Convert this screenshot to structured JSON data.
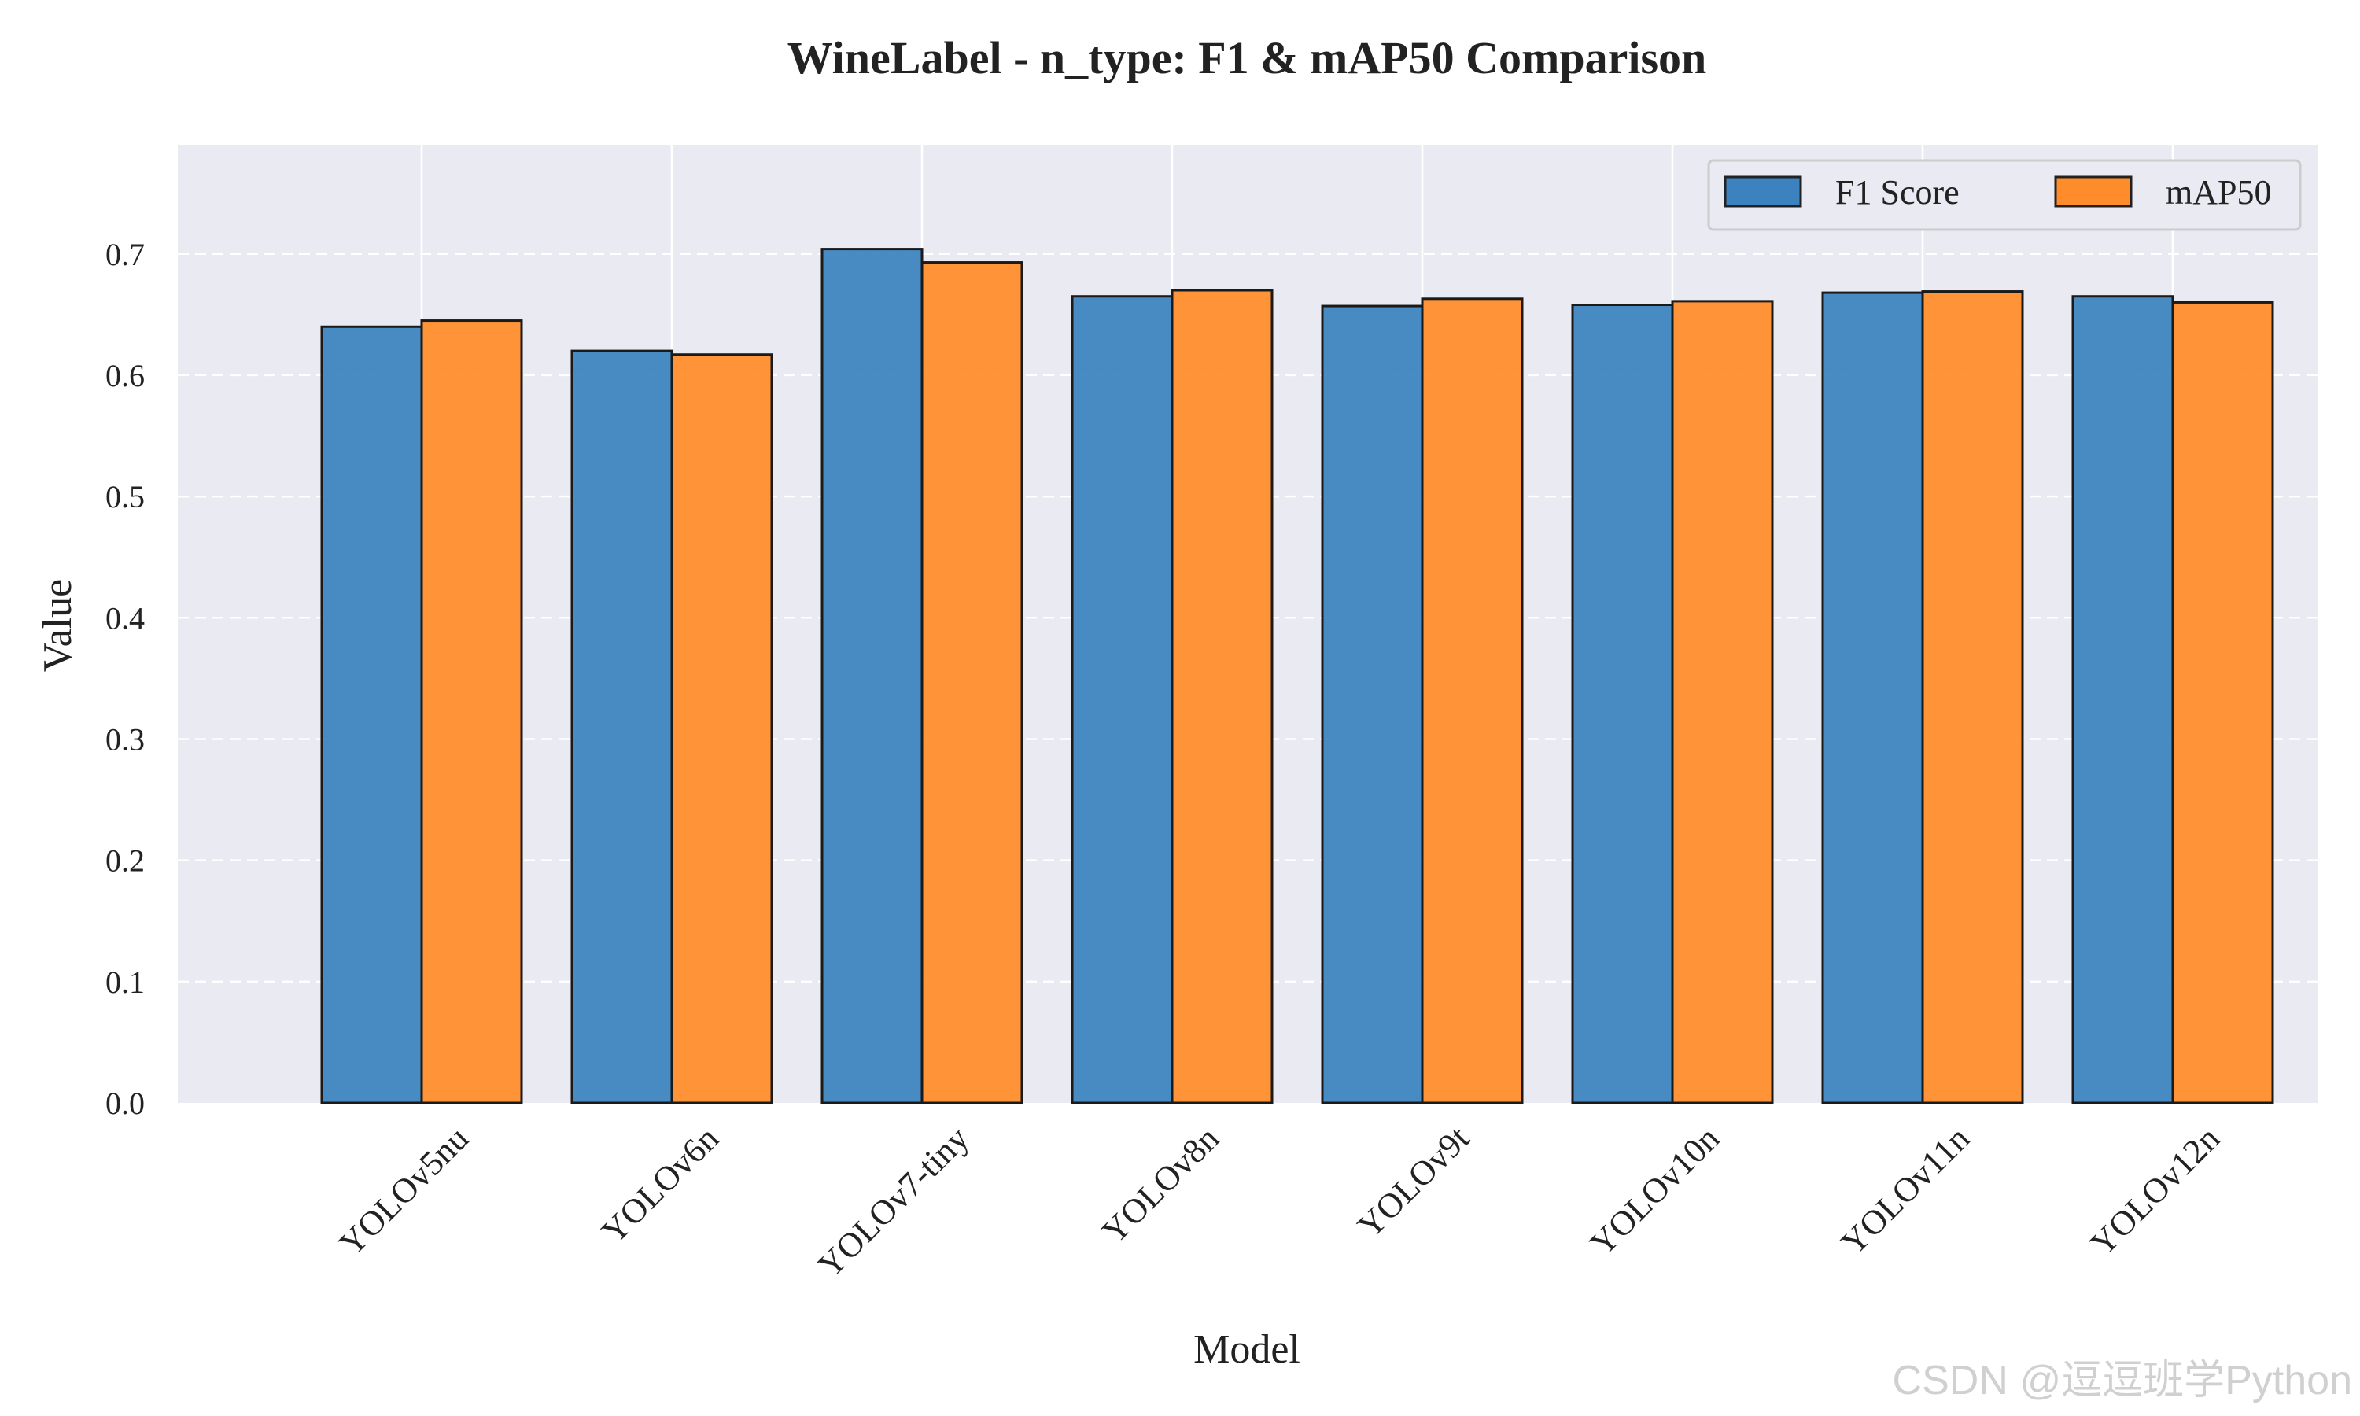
{
  "chart_data": {
    "type": "bar",
    "title": "WineLabel - n_type: F1 & mAP50 Comparison",
    "xlabel": "Model",
    "ylabel": "Value",
    "categories": [
      "YOLOv5nu",
      "YOLOv6n",
      "YOLOv7-tiny",
      "YOLOv8n",
      "YOLOv9t",
      "YOLOv10n",
      "YOLOv11n",
      "YOLOv12n"
    ],
    "series": [
      {
        "name": "F1 Score",
        "color": "#3b82be",
        "values": [
          0.64,
          0.62,
          0.704,
          0.665,
          0.657,
          0.658,
          0.668,
          0.665
        ]
      },
      {
        "name": "mAP50",
        "color": "#ff8c2a",
        "values": [
          0.645,
          0.617,
          0.693,
          0.67,
          0.663,
          0.661,
          0.669,
          0.66
        ]
      }
    ],
    "ylim": [
      0,
      0.79
    ],
    "yticks": [
      "0.0",
      "0.1",
      "0.2",
      "0.3",
      "0.4",
      "0.5",
      "0.6",
      "0.7"
    ],
    "grid": true,
    "legend": "top-right",
    "background_color": "#eaeaf2"
  },
  "watermark": "CSDN @逗逗班学Python"
}
